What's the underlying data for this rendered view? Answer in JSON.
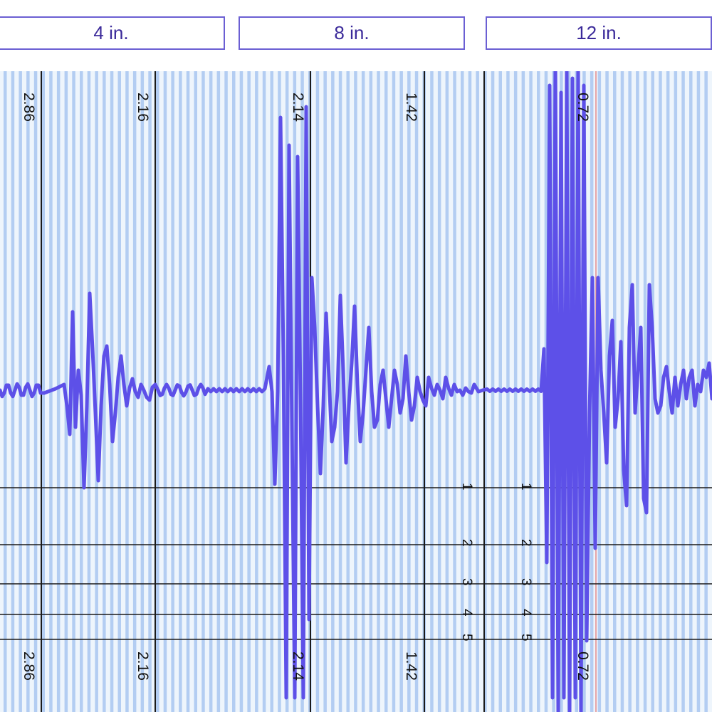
{
  "tabs": [
    {
      "label": "4 in."
    },
    {
      "label": "8 in."
    },
    {
      "label": "12 in."
    }
  ],
  "marker_values": {
    "m1": "2.86",
    "m2": "2.16",
    "m3": "2.14",
    "m4": "1.42",
    "m5": "0.72"
  },
  "level_labels": [
    "1",
    "2",
    "3",
    "4",
    "5"
  ],
  "colors": {
    "accent": "#6b5fd3",
    "tab_text": "#3b2a9a",
    "waveform": "#5d50e8",
    "stripe_light": "#eef5fc",
    "stripe_blue": "#b3cdf2",
    "grid_line": "#1a1a1a",
    "cursor_line": "#e48a8a"
  }
}
